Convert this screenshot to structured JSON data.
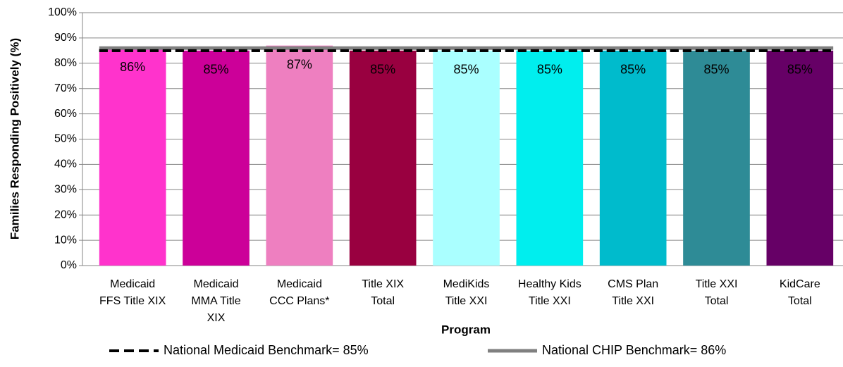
{
  "chart_data": {
    "type": "bar",
    "ylabel": "Families Responding Positively (%)",
    "xlabel": "Program",
    "categories": [
      [
        "Medicaid",
        "FFS Title XIX"
      ],
      [
        "Medicaid",
        "MMA Title",
        "XIX"
      ],
      [
        "Medicaid",
        "CCC Plans*"
      ],
      [
        "Title XIX",
        "Total"
      ],
      [
        "MediKids",
        "Title XXI"
      ],
      [
        "Healthy Kids",
        "Title XXI"
      ],
      [
        "CMS Plan",
        "Title XXI"
      ],
      [
        "Title XXI",
        "Total"
      ],
      [
        "KidCare",
        "Total"
      ]
    ],
    "values": [
      86,
      85,
      87,
      85,
      85,
      85,
      85,
      85,
      85
    ],
    "value_labels": [
      "86%",
      "85%",
      "87%",
      "85%",
      "85%",
      "85%",
      "85%",
      "85%",
      "85%"
    ],
    "colors": [
      "#ff33cc",
      "#cc0099",
      "#ee7fc0",
      "#990040",
      "#aaffff",
      "#00eeee",
      "#00bbcc",
      "#2e8b96",
      "#660066"
    ],
    "label_colors": [
      "#000000",
      "#000000",
      "#000000",
      "#ffffff",
      "#000000",
      "#000000",
      "#000000",
      "#ffffff",
      "#ffffff"
    ],
    "benchmarks": [
      {
        "name": "National Medicaid Benchmark= 85%",
        "value": 85,
        "color": "#000000",
        "style": "dashed"
      },
      {
        "name": "National CHIP Benchmark= 86%",
        "value": 86,
        "color": "#808080",
        "style": "solid"
      }
    ],
    "ylim": [
      0,
      100
    ],
    "yticks": [
      {
        "value": 0,
        "label": "0%"
      },
      {
        "value": 10,
        "label": "10%"
      },
      {
        "value": 20,
        "label": "20%"
      },
      {
        "value": 30,
        "label": "30%"
      },
      {
        "value": 40,
        "label": "40%"
      },
      {
        "value": 50,
        "label": "50%"
      },
      {
        "value": 60,
        "label": "60%"
      },
      {
        "value": 70,
        "label": "70%"
      },
      {
        "value": 80,
        "label": "80%"
      },
      {
        "value": 90,
        "label": "90%"
      },
      {
        "value": 100,
        "label": "100%"
      }
    ],
    "grid": true
  }
}
